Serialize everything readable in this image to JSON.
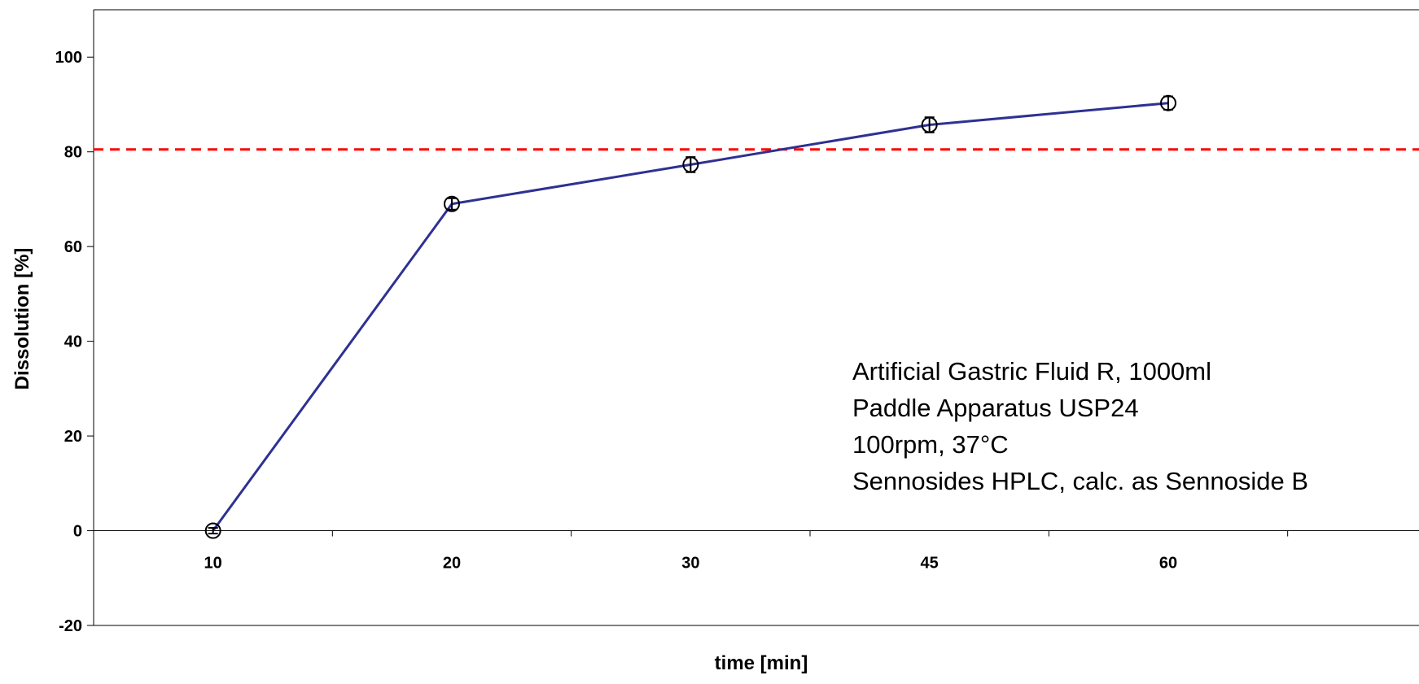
{
  "chart_data": {
    "type": "line",
    "title": "",
    "xlabel": "time [min]",
    "ylabel": "Dissolution [%]",
    "categories": [
      "10",
      "20",
      "30",
      "45",
      "60"
    ],
    "series": [
      {
        "values": [
          0,
          69,
          77.3,
          85.7,
          90.3
        ],
        "error": [
          0.6,
          1.2,
          1.6,
          1.6,
          1.4
        ],
        "color": "#2e3192",
        "marker": "open-circle"
      }
    ],
    "reference_lines": [
      {
        "y": 80.5,
        "color": "#ff0000",
        "style": "dashed"
      }
    ],
    "ylim": [
      -20,
      110
    ],
    "yticks": [
      -20,
      0,
      20,
      40,
      60,
      80,
      100
    ],
    "grid": false,
    "legend": "none",
    "annotation": [
      "Artificial Gastric Fluid R, 1000ml",
      "Paddle Apparatus USP24",
      "100rpm, 37°C",
      "Sennosides HPLC, calc. as Sennoside B"
    ]
  }
}
